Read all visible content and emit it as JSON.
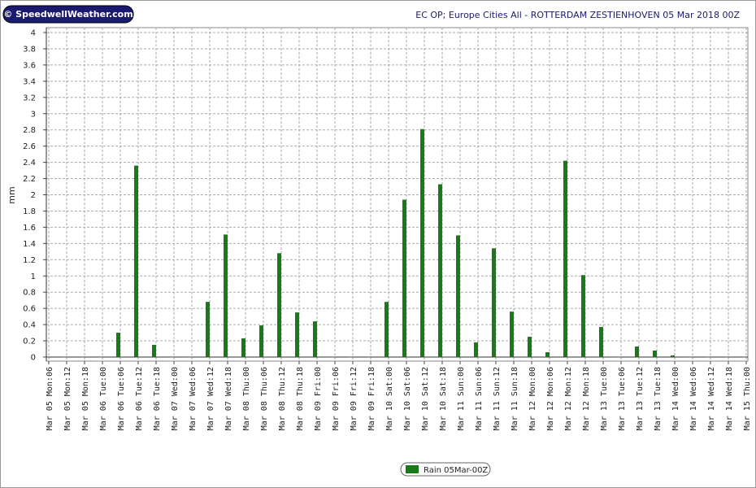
{
  "chart_data": {
    "type": "bar",
    "logo": "© SpeedwellWeather.com",
    "title": "EC OP; Europe Cities All - ROTTERDAM ZESTIENHOVEN 05 Mar 2018 00Z",
    "y_label": "mm",
    "categories": [
      "Mar 05 Mon:06",
      "Mar 05 Mon:12",
      "Mar 05 Mon:18",
      "Mar 06 Tue:00",
      "Mar 06 Tue:06",
      "Mar 06 Tue:12",
      "Mar 06 Tue:18",
      "Mar 07 Wed:00",
      "Mar 07 Wed:06",
      "Mar 07 Wed:12",
      "Mar 07 Wed:18",
      "Mar 08 Thu:00",
      "Mar 08 Thu:06",
      "Mar 08 Thu:12",
      "Mar 08 Thu:18",
      "Mar 09 Fri:00",
      "Mar 09 Fri:06",
      "Mar 09 Fri:12",
      "Mar 09 Fri:18",
      "Mar 10 Sat:00",
      "Mar 10 Sat:06",
      "Mar 10 Sat:12",
      "Mar 10 Sat:18",
      "Mar 11 Sun:00",
      "Mar 11 Sun:06",
      "Mar 11 Sun:12",
      "Mar 11 Sun:18",
      "Mar 12 Mon:00",
      "Mar 12 Mon:06",
      "Mar 12 Mon:12",
      "Mar 12 Mon:18",
      "Mar 13 Tue:00",
      "Mar 13 Tue:06",
      "Mar 13 Tue:12",
      "Mar 13 Tue:18",
      "Mar 14 Wed:00",
      "Mar 14 Wed:06",
      "Mar 14 Wed:12",
      "Mar 14 Wed:18",
      "Mar 15 Thu:00"
    ],
    "series": [
      {
        "name": "Rain 05Mar-00Z",
        "color": "#1a7a1a",
        "values": [
          0,
          0,
          0,
          0,
          0.3,
          2.36,
          0.15,
          0,
          0,
          0.68,
          1.51,
          0.23,
          0.39,
          1.28,
          0.55,
          0.44,
          0,
          0,
          0,
          0.68,
          1.94,
          2.81,
          2.13,
          1.5,
          0.18,
          1.34,
          0.56,
          0.25,
          0.06,
          2.42,
          1.01,
          0.37,
          0,
          0.13,
          0.08,
          0.02,
          0,
          0,
          0,
          0
        ]
      }
    ],
    "ylim": [
      0,
      4
    ],
    "yticks": [
      0,
      0.2,
      0.4,
      0.6,
      0.8,
      1,
      1.2,
      1.4,
      1.6,
      1.8,
      2,
      2.2,
      2.4,
      2.6,
      2.8,
      3,
      3.2,
      3.4,
      3.6,
      3.8,
      4
    ],
    "grid": true
  }
}
